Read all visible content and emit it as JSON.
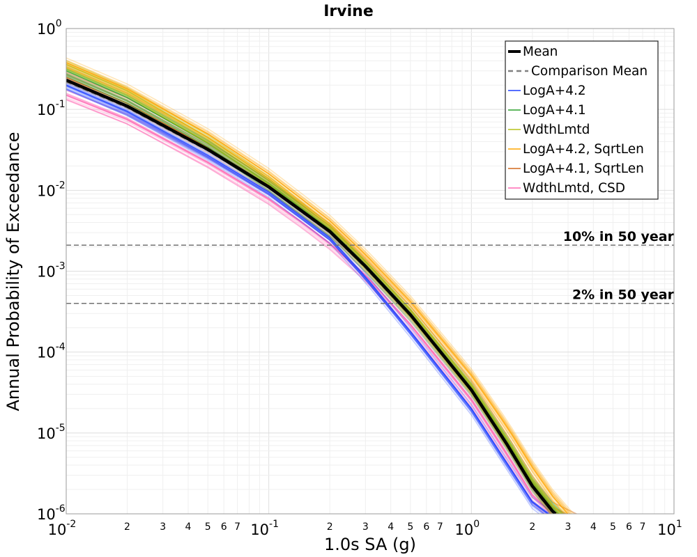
{
  "chart_data": {
    "type": "line",
    "title": "Irvine",
    "xlabel": "1.0s SA (g)",
    "ylabel": "Annual Probability of Exceedance",
    "xscale": "log",
    "yscale": "log",
    "xlim": [
      0.01,
      10
    ],
    "ylim": [
      1e-06,
      1
    ],
    "grid": true,
    "legend_position": "top-right",
    "x_major_ticks": [
      {
        "value": 0.01,
        "base": "10",
        "exp": "-2"
      },
      {
        "value": 0.1,
        "base": "10",
        "exp": "-1"
      },
      {
        "value": 1,
        "base": "10",
        "exp": "0"
      },
      {
        "value": 10,
        "base": "10",
        "exp": "1"
      }
    ],
    "x_minor_ticks": [
      {
        "value": 0.02,
        "label": "2"
      },
      {
        "value": 0.03,
        "label": "3"
      },
      {
        "value": 0.04,
        "label": "4"
      },
      {
        "value": 0.05,
        "label": "5"
      },
      {
        "value": 0.06,
        "label": "6"
      },
      {
        "value": 0.07,
        "label": "7"
      },
      {
        "value": 0.2,
        "label": "2"
      },
      {
        "value": 0.3,
        "label": "3"
      },
      {
        "value": 0.4,
        "label": "4"
      },
      {
        "value": 0.5,
        "label": "5"
      },
      {
        "value": 0.6,
        "label": "6"
      },
      {
        "value": 0.7,
        "label": "7"
      },
      {
        "value": 2,
        "label": "2"
      },
      {
        "value": 3,
        "label": "3"
      },
      {
        "value": 4,
        "label": "4"
      },
      {
        "value": 5,
        "label": "5"
      },
      {
        "value": 6,
        "label": "6"
      },
      {
        "value": 7,
        "label": "7"
      }
    ],
    "y_major_ticks": [
      {
        "value": 1,
        "base": "10",
        "exp": "0"
      },
      {
        "value": 0.1,
        "base": "10",
        "exp": "-1"
      },
      {
        "value": 0.01,
        "base": "10",
        "exp": "-2"
      },
      {
        "value": 0.001,
        "base": "10",
        "exp": "-3"
      },
      {
        "value": 0.0001,
        "base": "10",
        "exp": "-4"
      },
      {
        "value": 1e-05,
        "base": "10",
        "exp": "-5"
      },
      {
        "value": 1e-06,
        "base": "10",
        "exp": "-6"
      }
    ],
    "reference_lines": [
      {
        "label": "10% in 50 year",
        "y": 0.0021
      },
      {
        "label": "2% in 50 year",
        "y": 0.0004
      }
    ],
    "legend": [
      {
        "label": "Mean",
        "color": "#000000",
        "style": "solid-thick"
      },
      {
        "label": "Comparison Mean",
        "color": "#808080",
        "style": "dashed"
      },
      {
        "label": "LogA+4.2",
        "color": "#1f3fff",
        "style": "solid"
      },
      {
        "label": "LogA+4.1",
        "color": "#2ca02c",
        "style": "solid"
      },
      {
        "label": "WdthLmtd",
        "color": "#b5c21a",
        "style": "solid"
      },
      {
        "label": "LogA+4.2, SqrtLen",
        "color": "#ffa500",
        "style": "solid"
      },
      {
        "label": "LogA+4.1, SqrtLen",
        "color": "#d2691e",
        "style": "solid"
      },
      {
        "label": "WdthLmtd, CSD",
        "color": "#ff69b4",
        "style": "solid"
      }
    ],
    "series": [
      {
        "name": "Mean",
        "color": "#000000",
        "x": [
          0.01,
          0.02,
          0.05,
          0.1,
          0.2,
          0.3,
          0.5,
          1,
          1.5,
          2,
          2.5,
          2.6
        ],
        "y": [
          0.23,
          0.11,
          0.032,
          0.011,
          0.0031,
          0.00115,
          0.00029,
          3.4e-05,
          7.2e-06,
          2.2e-06,
          1.1e-06,
          1e-06
        ]
      },
      {
        "name": "LogA+4.2",
        "color": "#1f3fff",
        "x": [
          0.01,
          0.02,
          0.05,
          0.1,
          0.2,
          0.3,
          0.5,
          1,
          1.5,
          2,
          2.4
        ],
        "y": [
          0.2,
          0.095,
          0.027,
          0.0095,
          0.0026,
          0.00085,
          0.00018,
          2e-05,
          4.2e-06,
          1.4e-06,
          1e-06
        ]
      },
      {
        "name": "LogA+4.1",
        "color": "#2ca02c",
        "x": [
          0.01,
          0.02,
          0.05,
          0.1,
          0.2,
          0.3,
          0.5,
          1,
          1.5,
          2,
          2.5,
          2.7
        ],
        "y": [
          0.3,
          0.14,
          0.038,
          0.012,
          0.0033,
          0.0012,
          0.0003,
          3.6e-05,
          7.8e-06,
          2.4e-06,
          1.2e-06,
          1e-06
        ]
      },
      {
        "name": "WdthLmtd",
        "color": "#b5c21a",
        "x": [
          0.01,
          0.02,
          0.05,
          0.1,
          0.2,
          0.3,
          0.5,
          1,
          1.5,
          2,
          2.5,
          2.8
        ],
        "y": [
          0.36,
          0.17,
          0.045,
          0.014,
          0.0036,
          0.0013,
          0.00033,
          3.9e-05,
          8.5e-06,
          2.7e-06,
          1.3e-06,
          1e-06
        ]
      },
      {
        "name": "LogA+4.2, SqrtLen",
        "color": "#ffa500",
        "x": [
          0.01,
          0.02,
          0.05,
          0.1,
          0.2,
          0.3,
          0.5,
          1,
          1.5,
          2,
          2.5,
          3.0
        ],
        "y": [
          0.38,
          0.18,
          0.05,
          0.016,
          0.0042,
          0.0016,
          0.00042,
          5.2e-05,
          1.2e-05,
          3.8e-06,
          1.7e-06,
          1e-06
        ]
      },
      {
        "name": "LogA+4.1, SqrtLen",
        "color": "#d2691e",
        "x": [
          0.01,
          0.02,
          0.05,
          0.1,
          0.2,
          0.3,
          0.5,
          1,
          1.5,
          2,
          2.5,
          2.7
        ],
        "y": [
          0.25,
          0.12,
          0.034,
          0.0115,
          0.0032,
          0.00118,
          0.0003,
          3.5e-05,
          7.5e-06,
          2.3e-06,
          1.1e-06,
          1e-06
        ]
      },
      {
        "name": "WdthLmtd, CSD",
        "color": "#ff69b4",
        "x": [
          0.01,
          0.02,
          0.05,
          0.1,
          0.15,
          0.2,
          0.3,
          0.5,
          1,
          1.5,
          2,
          2.5
        ],
        "y": [
          0.15,
          0.075,
          0.022,
          0.0078,
          0.0038,
          0.0022,
          0.0009,
          0.00022,
          2.6e-05,
          5.5e-06,
          1.7e-06,
          1e-06
        ]
      },
      {
        "name": "Comparison Mean",
        "color": "#808080",
        "x": [
          0.01,
          0.02,
          0.05,
          0.1,
          0.2,
          0.3,
          0.5,
          1,
          1.5,
          2,
          2.5,
          2.6
        ],
        "y": [
          0.22,
          0.105,
          0.031,
          0.0107,
          0.003,
          0.0011,
          0.00028,
          3.3e-05,
          7e-06,
          2.1e-06,
          1.05e-06,
          1e-06
        ]
      }
    ]
  }
}
